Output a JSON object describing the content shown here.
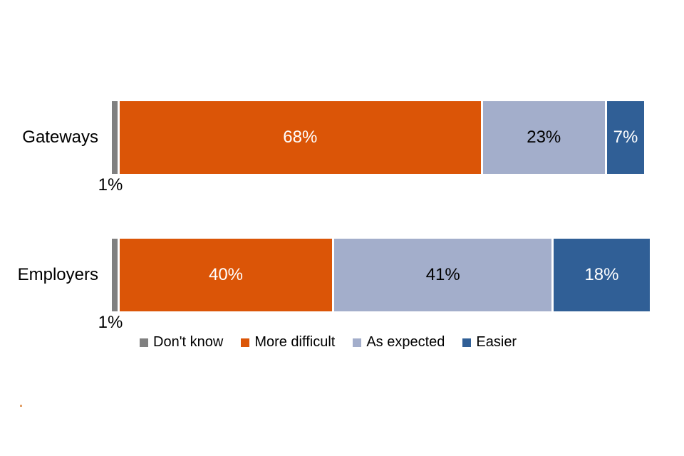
{
  "page": {
    "background": "#FFFFFF"
  },
  "chart_data": {
    "type": "bar",
    "orientation": "horizontal",
    "stacked": true,
    "units": "%",
    "categories": [
      "Gateways",
      "Employers"
    ],
    "series": [
      {
        "name": "Don't know",
        "color": "#808080",
        "values": [
          1,
          1
        ],
        "data_labels": [
          "1%",
          "1%"
        ],
        "label_placement": "below-bar",
        "label_color": "#000000"
      },
      {
        "name": "More difficult",
        "color": "#DB5507",
        "values": [
          68,
          40
        ],
        "data_labels": [
          "68%",
          "40%"
        ],
        "label_placement": "inside",
        "label_color": "#FFFFFF"
      },
      {
        "name": "As expected",
        "color": "#A3AECB",
        "values": [
          23,
          41
        ],
        "data_labels": [
          "23%",
          "41%"
        ],
        "label_placement": "inside",
        "label_color": "#000000"
      },
      {
        "name": "Easier",
        "color": "#305F96",
        "values": [
          7,
          18
        ],
        "data_labels": [
          "7%",
          "18%"
        ],
        "label_placement": "inside",
        "label_color": "#FFFFFF"
      }
    ],
    "xlim": [
      0,
      100
    ],
    "axes_visible": false,
    "gridlines": false,
    "legend_position": "bottom-center"
  }
}
